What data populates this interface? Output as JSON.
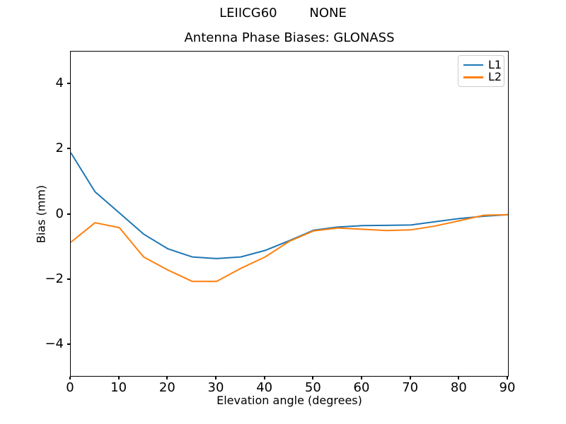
{
  "chart_data": {
    "type": "line",
    "suptitle": "LEIICG60        NONE",
    "title": "Antenna Phase Biases: GLONASS",
    "xlabel": "Elevation angle (degrees)",
    "ylabel": "Bias (mm)",
    "xlim": [
      0,
      90
    ],
    "ylim": [
      -4.95,
      5.0
    ],
    "xticks": [
      0,
      10,
      20,
      30,
      40,
      50,
      60,
      70,
      80,
      90
    ],
    "yticks": [
      4,
      2,
      0,
      -2,
      -4
    ],
    "grid": false,
    "legend_position": "upper right",
    "x": [
      0,
      5,
      10,
      15,
      20,
      25,
      30,
      35,
      40,
      45,
      50,
      55,
      60,
      65,
      70,
      75,
      80,
      85,
      90
    ],
    "series": [
      {
        "name": "L1",
        "color": "#1f77b4",
        "values": [
          1.9,
          0.7,
          0.05,
          -0.6,
          -1.05,
          -1.3,
          -1.35,
          -1.3,
          -1.1,
          -0.8,
          -0.48,
          -0.38,
          -0.34,
          -0.33,
          -0.32,
          -0.22,
          -0.12,
          -0.05,
          0.0
        ]
      },
      {
        "name": "L2",
        "color": "#ff7f0e",
        "values": [
          -0.85,
          -0.25,
          -0.4,
          -1.3,
          -1.7,
          -2.05,
          -2.05,
          -1.65,
          -1.3,
          -0.82,
          -0.5,
          -0.41,
          -0.45,
          -0.49,
          -0.47,
          -0.35,
          -0.19,
          -0.02,
          0.0
        ]
      }
    ]
  }
}
